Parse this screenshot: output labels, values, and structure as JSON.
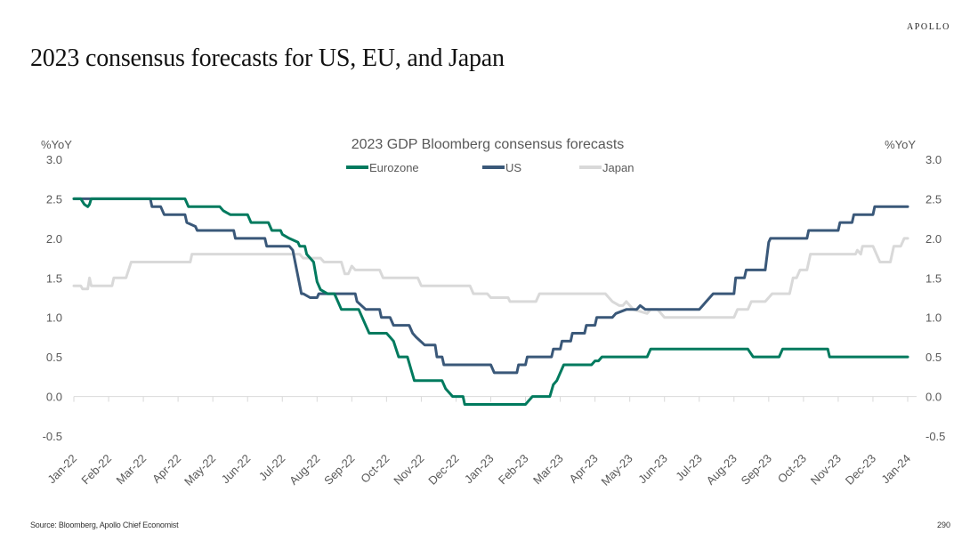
{
  "brand": "APOLLO",
  "page_title": "2023 consensus forecasts for US, EU, and Japan",
  "footer": {
    "source": "Source: Bloomberg, Apollo Chief Economist",
    "page_number": "290"
  },
  "colors": {
    "eurozone": "#007A5E",
    "us": "#3A5879",
    "japan": "#D9D9D9",
    "axis": "#D9D9D9",
    "text": "#595959"
  },
  "chart_data": {
    "type": "line",
    "title": "2023 GDP Bloomberg consensus forecasts",
    "ylabel_left": "%YoY",
    "ylabel_right": "%YoY",
    "ylim": [
      -0.5,
      3.0
    ],
    "yticks": [
      3.0,
      2.5,
      2.0,
      1.5,
      1.0,
      0.5,
      0.0,
      -0.5
    ],
    "ytick_labels": [
      "3.0",
      "2.5",
      "2.0",
      "1.5",
      "1.0",
      "0.5",
      "0.0",
      "-0.5"
    ],
    "x_unit": "months since Jan-22",
    "xlim": [
      0,
      24
    ],
    "x_tick_labels": [
      "Jan-22",
      "Feb-22",
      "Mar-22",
      "Apr-22",
      "May-22",
      "Jun-22",
      "Jul-22",
      "Aug-22",
      "Sep-22",
      "Oct-22",
      "Nov-22",
      "Dec-22",
      "Jan-23",
      "Feb-23",
      "Mar-23",
      "Apr-23",
      "May-23",
      "Jun-23",
      "Jul-23",
      "Aug-23",
      "Sep-23",
      "Oct-23",
      "Nov-23",
      "Dec-23",
      "Jan-24"
    ],
    "grid": false,
    "legend_position": "top-center",
    "series": [
      {
        "name": "Eurozone",
        "color_key": "eurozone",
        "points": [
          [
            0,
            2.5
          ],
          [
            0.2,
            2.5
          ],
          [
            0.3,
            2.43
          ],
          [
            0.4,
            2.4
          ],
          [
            0.45,
            2.43
          ],
          [
            0.5,
            2.5
          ],
          [
            3.2,
            2.5
          ],
          [
            3.3,
            2.4
          ],
          [
            4.2,
            2.4
          ],
          [
            4.3,
            2.35
          ],
          [
            4.5,
            2.3
          ],
          [
            5.0,
            2.3
          ],
          [
            5.1,
            2.2
          ],
          [
            5.6,
            2.2
          ],
          [
            5.7,
            2.1
          ],
          [
            5.95,
            2.1
          ],
          [
            6.0,
            2.05
          ],
          [
            6.2,
            2.0
          ],
          [
            6.45,
            1.95
          ],
          [
            6.5,
            1.9
          ],
          [
            6.65,
            1.9
          ],
          [
            6.7,
            1.8
          ],
          [
            6.9,
            1.7
          ],
          [
            7.0,
            1.45
          ],
          [
            7.1,
            1.35
          ],
          [
            7.3,
            1.3
          ],
          [
            7.5,
            1.3
          ],
          [
            7.6,
            1.2
          ],
          [
            7.7,
            1.1
          ],
          [
            8.2,
            1.1
          ],
          [
            8.3,
            1.0
          ],
          [
            8.5,
            0.8
          ],
          [
            9.0,
            0.8
          ],
          [
            9.1,
            0.75
          ],
          [
            9.2,
            0.7
          ],
          [
            9.35,
            0.5
          ],
          [
            9.6,
            0.5
          ],
          [
            9.7,
            0.35
          ],
          [
            9.8,
            0.2
          ],
          [
            10.6,
            0.2
          ],
          [
            10.7,
            0.1
          ],
          [
            10.9,
            0.0
          ],
          [
            11.2,
            0.0
          ],
          [
            11.25,
            -0.1
          ],
          [
            13.0,
            -0.1
          ],
          [
            13.1,
            -0.05
          ],
          [
            13.2,
            0.0
          ],
          [
            13.7,
            0.0
          ],
          [
            13.8,
            0.15
          ],
          [
            13.9,
            0.2
          ],
          [
            14.0,
            0.3
          ],
          [
            14.1,
            0.4
          ],
          [
            14.9,
            0.4
          ],
          [
            15.0,
            0.45
          ],
          [
            15.1,
            0.45
          ],
          [
            15.2,
            0.5
          ],
          [
            16.5,
            0.5
          ],
          [
            16.6,
            0.6
          ],
          [
            19.4,
            0.6
          ],
          [
            19.55,
            0.5
          ],
          [
            20.3,
            0.5
          ],
          [
            20.4,
            0.6
          ],
          [
            21.7,
            0.6
          ],
          [
            21.75,
            0.5
          ],
          [
            24,
            0.5
          ]
        ]
      },
      {
        "name": "US",
        "color_key": "us",
        "points": [
          [
            0,
            2.5
          ],
          [
            2.2,
            2.5
          ],
          [
            2.25,
            2.4
          ],
          [
            2.5,
            2.4
          ],
          [
            2.6,
            2.3
          ],
          [
            3.2,
            2.3
          ],
          [
            3.25,
            2.2
          ],
          [
            3.5,
            2.15
          ],
          [
            3.55,
            2.1
          ],
          [
            4.6,
            2.1
          ],
          [
            4.65,
            2.0
          ],
          [
            5.5,
            2.0
          ],
          [
            5.55,
            1.9
          ],
          [
            6.2,
            1.9
          ],
          [
            6.3,
            1.85
          ],
          [
            6.55,
            1.3
          ],
          [
            6.6,
            1.3
          ],
          [
            6.8,
            1.25
          ],
          [
            7.0,
            1.25
          ],
          [
            7.05,
            1.3
          ],
          [
            8.1,
            1.3
          ],
          [
            8.15,
            1.2
          ],
          [
            8.4,
            1.1
          ],
          [
            8.8,
            1.1
          ],
          [
            8.85,
            1.0
          ],
          [
            9.1,
            1.0
          ],
          [
            9.2,
            0.9
          ],
          [
            9.65,
            0.9
          ],
          [
            9.75,
            0.8
          ],
          [
            9.85,
            0.75
          ],
          [
            10.1,
            0.65
          ],
          [
            10.4,
            0.65
          ],
          [
            10.45,
            0.5
          ],
          [
            10.6,
            0.5
          ],
          [
            10.65,
            0.4
          ],
          [
            12.0,
            0.4
          ],
          [
            12.1,
            0.3
          ],
          [
            12.75,
            0.3
          ],
          [
            12.8,
            0.4
          ],
          [
            13.0,
            0.4
          ],
          [
            13.05,
            0.5
          ],
          [
            13.75,
            0.5
          ],
          [
            13.8,
            0.6
          ],
          [
            14.0,
            0.6
          ],
          [
            14.05,
            0.7
          ],
          [
            14.3,
            0.7
          ],
          [
            14.35,
            0.8
          ],
          [
            14.7,
            0.8
          ],
          [
            14.75,
            0.9
          ],
          [
            15.0,
            0.9
          ],
          [
            15.05,
            1.0
          ],
          [
            15.5,
            1.0
          ],
          [
            15.6,
            1.05
          ],
          [
            15.9,
            1.1
          ],
          [
            16.2,
            1.1
          ],
          [
            16.3,
            1.15
          ],
          [
            16.45,
            1.1
          ],
          [
            18.0,
            1.1
          ],
          [
            18.1,
            1.15
          ],
          [
            18.2,
            1.2
          ],
          [
            18.3,
            1.25
          ],
          [
            18.4,
            1.3
          ],
          [
            19.0,
            1.3
          ],
          [
            19.05,
            1.5
          ],
          [
            19.3,
            1.5
          ],
          [
            19.35,
            1.6
          ],
          [
            19.9,
            1.6
          ],
          [
            20.0,
            1.95
          ],
          [
            20.05,
            2.0
          ],
          [
            21.1,
            2.0
          ],
          [
            21.15,
            2.1
          ],
          [
            22.0,
            2.1
          ],
          [
            22.05,
            2.2
          ],
          [
            22.4,
            2.2
          ],
          [
            22.45,
            2.3
          ],
          [
            23.0,
            2.3
          ],
          [
            23.05,
            2.4
          ],
          [
            24,
            2.4
          ]
        ]
      },
      {
        "name": "Japan",
        "color_key": "japan",
        "points": [
          [
            0,
            1.4
          ],
          [
            0.2,
            1.4
          ],
          [
            0.25,
            1.36
          ],
          [
            0.4,
            1.36
          ],
          [
            0.45,
            1.5
          ],
          [
            0.5,
            1.4
          ],
          [
            1.1,
            1.4
          ],
          [
            1.15,
            1.5
          ],
          [
            1.5,
            1.5
          ],
          [
            1.65,
            1.7
          ],
          [
            3.35,
            1.7
          ],
          [
            3.4,
            1.8
          ],
          [
            6.5,
            1.8
          ],
          [
            6.6,
            1.75
          ],
          [
            7.1,
            1.75
          ],
          [
            7.2,
            1.7
          ],
          [
            7.7,
            1.7
          ],
          [
            7.8,
            1.55
          ],
          [
            7.9,
            1.55
          ],
          [
            8.0,
            1.65
          ],
          [
            8.1,
            1.6
          ],
          [
            8.8,
            1.6
          ],
          [
            8.9,
            1.5
          ],
          [
            9.9,
            1.5
          ],
          [
            10.0,
            1.4
          ],
          [
            11.4,
            1.4
          ],
          [
            11.5,
            1.3
          ],
          [
            11.9,
            1.3
          ],
          [
            12.0,
            1.25
          ],
          [
            12.5,
            1.25
          ],
          [
            12.55,
            1.2
          ],
          [
            13.3,
            1.2
          ],
          [
            13.4,
            1.3
          ],
          [
            15.3,
            1.3
          ],
          [
            15.5,
            1.2
          ],
          [
            15.7,
            1.15
          ],
          [
            15.8,
            1.15
          ],
          [
            15.9,
            1.2
          ],
          [
            16.1,
            1.1
          ],
          [
            16.5,
            1.05
          ],
          [
            16.6,
            1.1
          ],
          [
            16.8,
            1.1
          ],
          [
            17.0,
            1.0
          ],
          [
            19.0,
            1.0
          ],
          [
            19.1,
            1.1
          ],
          [
            19.4,
            1.1
          ],
          [
            19.5,
            1.2
          ],
          [
            19.9,
            1.2
          ],
          [
            20.1,
            1.3
          ],
          [
            20.6,
            1.3
          ],
          [
            20.7,
            1.5
          ],
          [
            20.8,
            1.5
          ],
          [
            20.9,
            1.6
          ],
          [
            21.1,
            1.6
          ],
          [
            21.2,
            1.8
          ],
          [
            22.5,
            1.8
          ],
          [
            22.55,
            1.85
          ],
          [
            22.65,
            1.8
          ],
          [
            22.7,
            1.9
          ],
          [
            23.0,
            1.9
          ],
          [
            23.1,
            1.8
          ],
          [
            23.2,
            1.7
          ],
          [
            23.5,
            1.7
          ],
          [
            23.6,
            1.9
          ],
          [
            23.8,
            1.9
          ],
          [
            23.9,
            2.0
          ],
          [
            24,
            2.0
          ]
        ]
      }
    ]
  }
}
